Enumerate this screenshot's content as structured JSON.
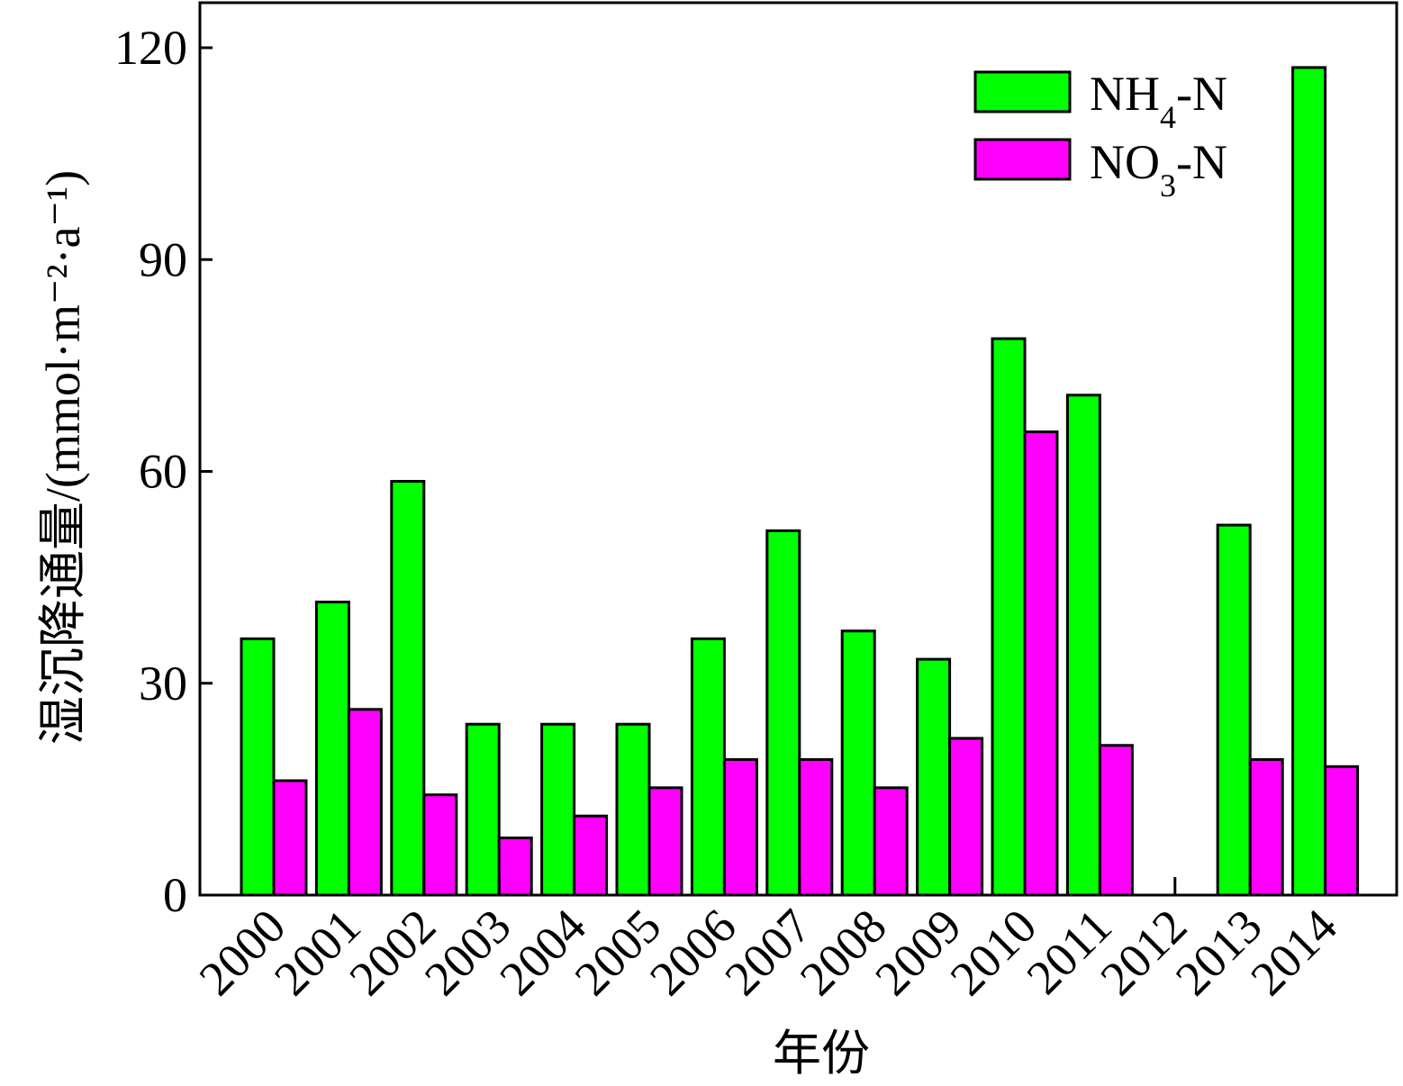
{
  "chart_data": {
    "type": "bar",
    "xlabel": "年份",
    "ylabel": "湿沉降通量/(mmol·m⁻²·a⁻¹)",
    "ylim": [
      0,
      120
    ],
    "yticks": [
      0,
      30,
      60,
      90,
      120
    ],
    "grid": false,
    "legend_position": "top-right",
    "categories": [
      "2000",
      "2001",
      "2002",
      "2003",
      "2004",
      "2005",
      "2006",
      "2007",
      "2008",
      "2009",
      "2010",
      "2011",
      "2012",
      "2013",
      "2014"
    ],
    "series": [
      {
        "name": "NH4-N",
        "color": "#00ff00",
        "values": [
          36.3,
          41.5,
          58.6,
          24.2,
          24.2,
          24.2,
          36.3,
          51.6,
          37.4,
          33.4,
          78.8,
          70.8,
          0,
          52.4,
          117.2
        ]
      },
      {
        "name": "NO3-N",
        "color": "#ff00ff",
        "values": [
          16.2,
          26.3,
          14.2,
          8.1,
          11.2,
          15.2,
          19.2,
          19.2,
          15.2,
          22.2,
          65.6,
          21.2,
          0,
          19.2,
          18.2
        ]
      }
    ]
  },
  "legend": {
    "nh4": {
      "main": "NH",
      "sub": "4",
      "rest": "-N"
    },
    "no3": {
      "main": "NO",
      "sub": "3",
      "rest": "-N"
    }
  }
}
